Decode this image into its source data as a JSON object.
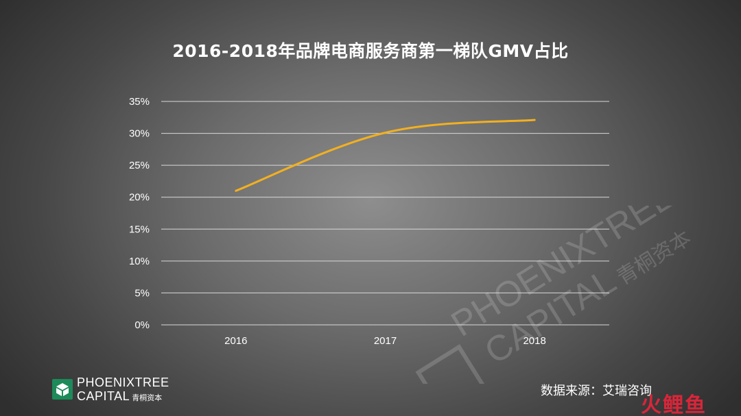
{
  "chart_data": {
    "type": "line",
    "title": "2016-2018年品牌电商服务商第一梯队GMV占比",
    "categories": [
      "2016",
      "2017",
      "2018"
    ],
    "series": [
      {
        "values": [
          21,
          30.1,
          32.1
        ]
      }
    ],
    "ylim": [
      0,
      35
    ],
    "y_ticks": [
      0,
      5,
      10,
      15,
      20,
      25,
      30,
      35
    ],
    "y_tick_labels": [
      "0%",
      "5%",
      "10%",
      "15%",
      "20%",
      "25%",
      "30%",
      "35%"
    ],
    "grid": true,
    "line_color": "#f2b020",
    "gridline_color": "#d9d9d9"
  },
  "logo": {
    "line1": "PHOENIXTREE",
    "line2": "CAPITAL",
    "cn": "青桐资本"
  },
  "watermark": {
    "line1": "PHOENIXTREE",
    "line2": "CAPITAL",
    "cn": "青桐资本"
  },
  "source": "数据来源：艾瑞咨询",
  "corner_badge": "火鲤鱼"
}
